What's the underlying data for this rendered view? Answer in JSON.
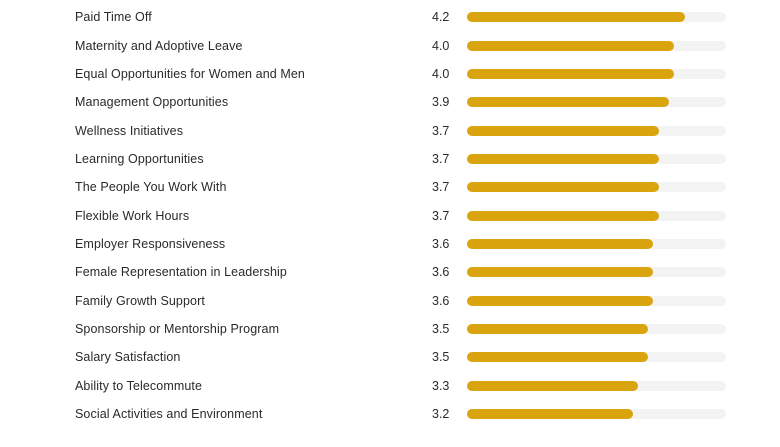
{
  "chart_data": {
    "type": "bar",
    "orientation": "horizontal",
    "title": "",
    "xlabel": "",
    "ylabel": "",
    "xlim": [
      0,
      5
    ],
    "grid": false,
    "legend": false,
    "value_format": "one_decimal",
    "categories": [
      "Paid Time Off",
      "Maternity and Adoptive Leave",
      "Equal Opportunities for Women and Men",
      "Management Opportunities",
      "Wellness Initiatives",
      "Learning Opportunities",
      "The People You Work With",
      "Flexible Work Hours",
      "Employer Responsiveness",
      "Female Representation in Leadership",
      "Family Growth Support",
      "Sponsorship or Mentorship Program",
      "Salary Satisfaction",
      "Ability to Telecommute",
      "Social Activities and Environment"
    ],
    "values": [
      4.2,
      4.0,
      4.0,
      3.9,
      3.7,
      3.7,
      3.7,
      3.7,
      3.6,
      3.6,
      3.6,
      3.5,
      3.5,
      3.3,
      3.2
    ],
    "value_labels": [
      "4.2",
      "4.0",
      "4.0",
      "3.9",
      "3.7",
      "3.7",
      "3.7",
      "3.7",
      "3.6",
      "3.6",
      "3.6",
      "3.5",
      "3.5",
      "3.3",
      "3.2"
    ],
    "colors": {
      "bar": "#d9a40e",
      "track": "#f3f3f3",
      "text": "#2a2a2a",
      "background": "#ffffff"
    }
  }
}
